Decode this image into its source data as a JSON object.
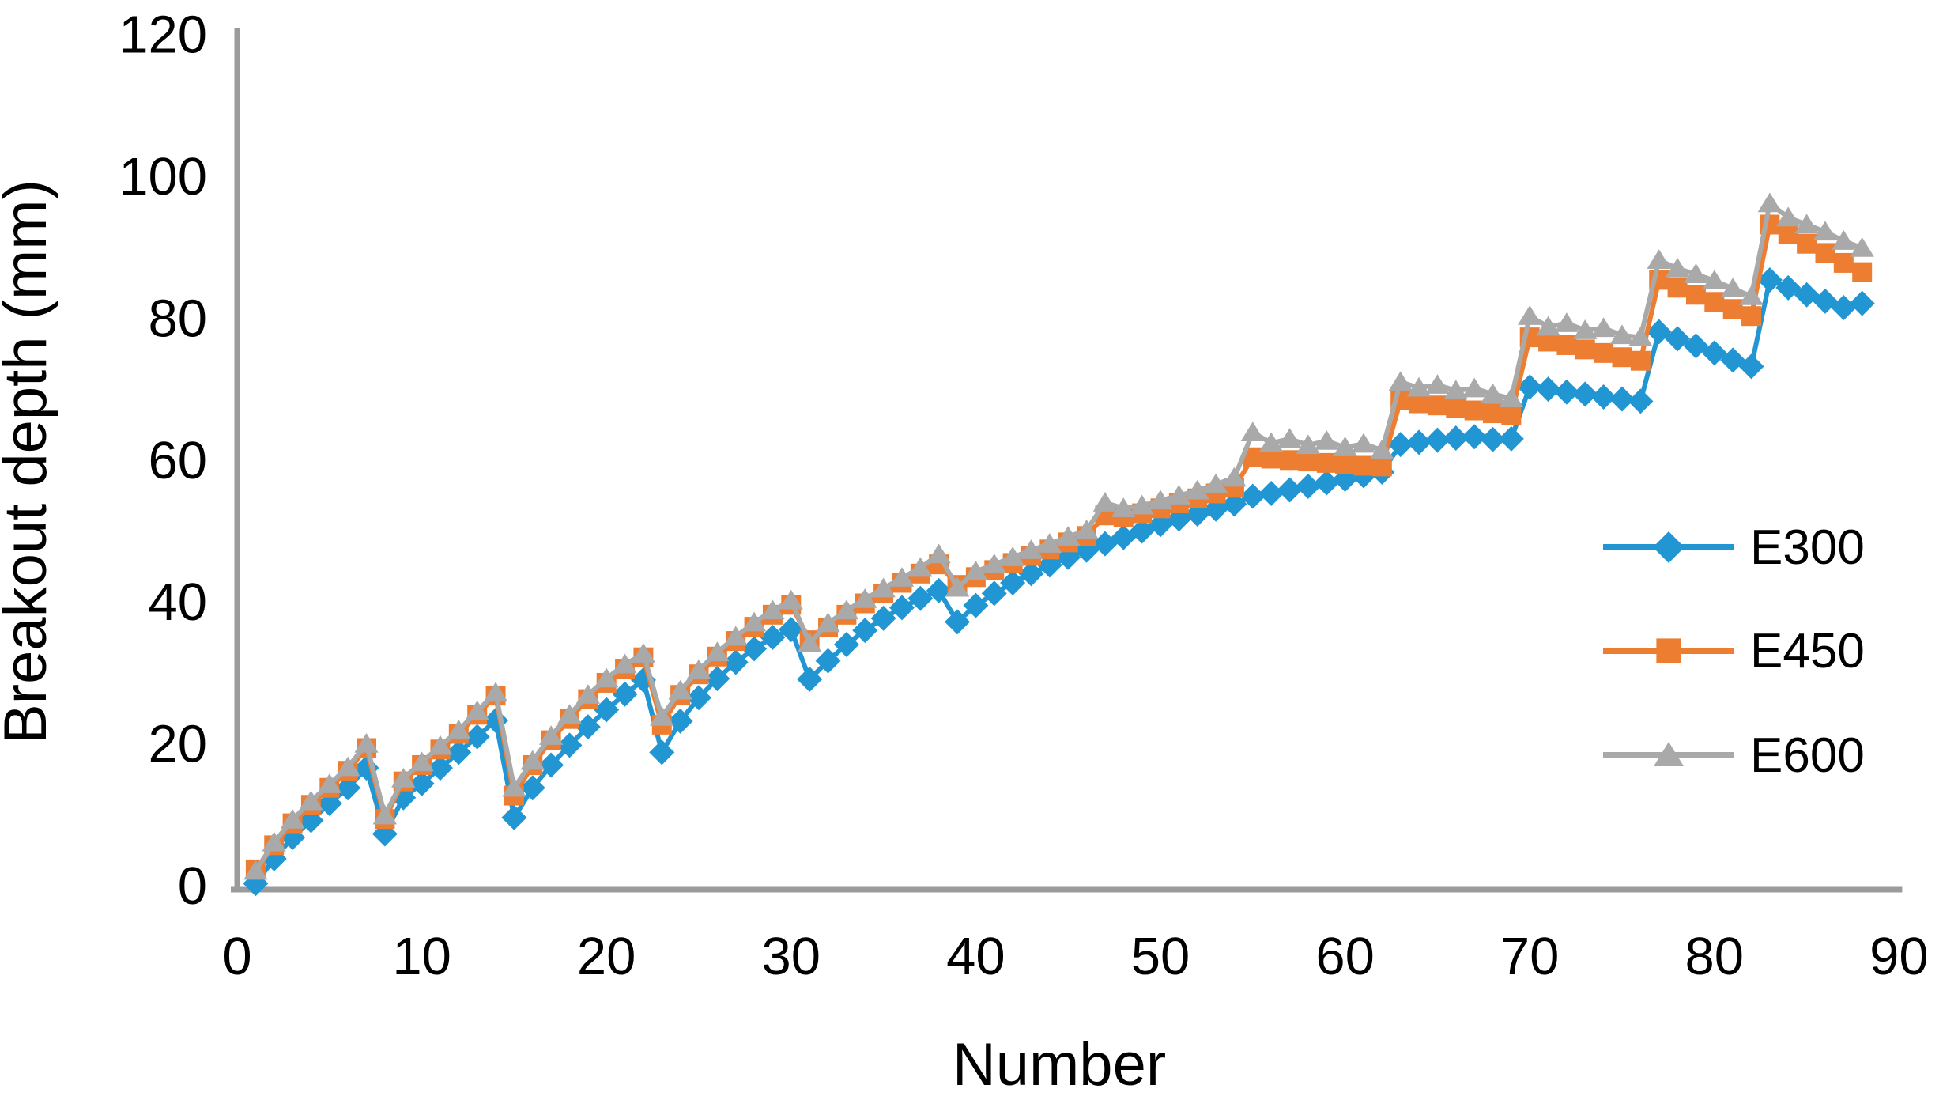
{
  "chart_data": {
    "type": "line",
    "title": "",
    "xlabel": "Number",
    "ylabel": "Breakout depth (mm)",
    "xlim": [
      0,
      90
    ],
    "ylim": [
      0,
      120
    ],
    "xticks": [
      0,
      10,
      20,
      30,
      40,
      50,
      60,
      70,
      80,
      90
    ],
    "yticks": [
      0,
      20,
      40,
      60,
      80,
      100,
      120
    ],
    "grid": "off",
    "legend_position": "right",
    "background": "#FFFFFF",
    "axis_color": "#9B9B9B",
    "text_color": "#000000",
    "x": [
      1,
      2,
      3,
      4,
      5,
      6,
      7,
      8,
      9,
      10,
      11,
      12,
      13,
      14,
      15,
      16,
      17,
      18,
      19,
      20,
      21,
      22,
      23,
      24,
      25,
      26,
      27,
      28,
      29,
      30,
      31,
      32,
      33,
      34,
      35,
      36,
      37,
      38,
      39,
      40,
      41,
      42,
      43,
      44,
      45,
      46,
      47,
      48,
      49,
      50,
      51,
      52,
      53,
      54,
      55,
      56,
      57,
      58,
      59,
      60,
      61,
      62,
      63,
      64,
      65,
      66,
      67,
      68,
      69,
      70,
      71,
      72,
      73,
      74,
      75,
      76,
      77,
      78,
      79,
      80,
      81,
      82,
      83,
      84,
      85,
      86,
      87,
      88
    ],
    "series": [
      {
        "name": "E300",
        "color": "#2196D3",
        "marker": "diamond",
        "values": [
          0.3,
          3.8,
          6.8,
          9.2,
          11.6,
          13.8,
          16.6,
          7.3,
          12.4,
          14.4,
          16.6,
          18.8,
          21,
          23.3,
          9.6,
          13.8,
          17,
          19.8,
          22.4,
          24.8,
          27,
          29,
          18.8,
          23.2,
          26.5,
          29.2,
          31.5,
          33.4,
          35,
          36.1,
          29.1,
          31.7,
          34,
          36,
          37.7,
          39.2,
          40.5,
          41.6,
          37.2,
          39.5,
          41.2,
          42.7,
          44,
          45.2,
          46.3,
          47.3,
          48.2,
          49.1,
          50,
          50.9,
          51.7,
          52.4,
          53.1,
          53.8,
          54.9,
          55.3,
          55.8,
          56.3,
          56.8,
          57.3,
          57.8,
          58.3,
          62.2,
          62.5,
          62.8,
          63.1,
          63.3,
          62.9,
          63,
          70.3,
          70,
          69.6,
          69.3,
          68.9,
          68.6,
          68.3,
          78.1,
          77.1,
          76.1,
          75.1,
          74.1,
          73.2,
          85.4,
          84.3,
          83.3,
          82.4,
          81.5,
          82.1
        ]
      },
      {
        "name": "E450",
        "color": "#ED7D31",
        "marker": "square",
        "values": [
          2.3,
          5.7,
          8.8,
          11.4,
          13.8,
          16.2,
          19.4,
          9.4,
          14.7,
          17,
          19.2,
          21.4,
          24.1,
          26.8,
          12.7,
          17,
          20.5,
          23.5,
          26.3,
          28.6,
          30.6,
          32.2,
          22.7,
          26.9,
          29.8,
          32.3,
          34.5,
          36.5,
          38.2,
          39.6,
          34.6,
          36.4,
          38.2,
          39.8,
          41.2,
          42.7,
          44,
          45.3,
          42.4,
          43.5,
          44.5,
          45.5,
          46.5,
          47.4,
          48.4,
          49.3,
          52.2,
          52,
          52.5,
          53.2,
          53.9,
          54.6,
          55.3,
          56.1,
          60.4,
          60.2,
          60,
          59.8,
          59.6,
          59.4,
          59.2,
          59.1,
          68.4,
          68,
          67.7,
          67.3,
          67,
          66.6,
          66.3,
          77.3,
          76.7,
          76.2,
          75.6,
          75.1,
          74.5,
          74,
          85.4,
          84.3,
          83.3,
          82.3,
          81.3,
          80.3,
          93.2,
          91.8,
          90.5,
          89.2,
          87.8,
          86.5
        ]
      },
      {
        "name": "E600",
        "color": "#A9A9A9",
        "marker": "triangle",
        "values": [
          2.1,
          6.1,
          9.3,
          11.9,
          14.3,
          16.7,
          20,
          9.9,
          15.1,
          17.4,
          19.7,
          21.9,
          24.6,
          27.2,
          13.8,
          17.6,
          21.1,
          24.1,
          26.9,
          29.2,
          31.2,
          32.7,
          23.8,
          27.5,
          30.4,
          32.9,
          35.1,
          37.1,
          38.8,
          40.2,
          34.2,
          37,
          38.8,
          40.4,
          41.9,
          43.4,
          44.8,
          46.7,
          42,
          44.3,
          45.3,
          46.3,
          47.3,
          48.2,
          49.2,
          50.1,
          54,
          53.2,
          53.6,
          54.3,
          55,
          55.7,
          56.6,
          57.5,
          63.9,
          62.4,
          63,
          62.1,
          62.7,
          61.8,
          62.3,
          61.4,
          71,
          70.2,
          70.6,
          69.8,
          70.1,
          69.3,
          68.7,
          80.3,
          78.8,
          79.3,
          78.3,
          78.6,
          77.6,
          77.3,
          88.2,
          87,
          86.2,
          85.3,
          84.2,
          83.1,
          96.2,
          94.2,
          93.2,
          92.2,
          90.9,
          89.9
        ]
      }
    ]
  }
}
